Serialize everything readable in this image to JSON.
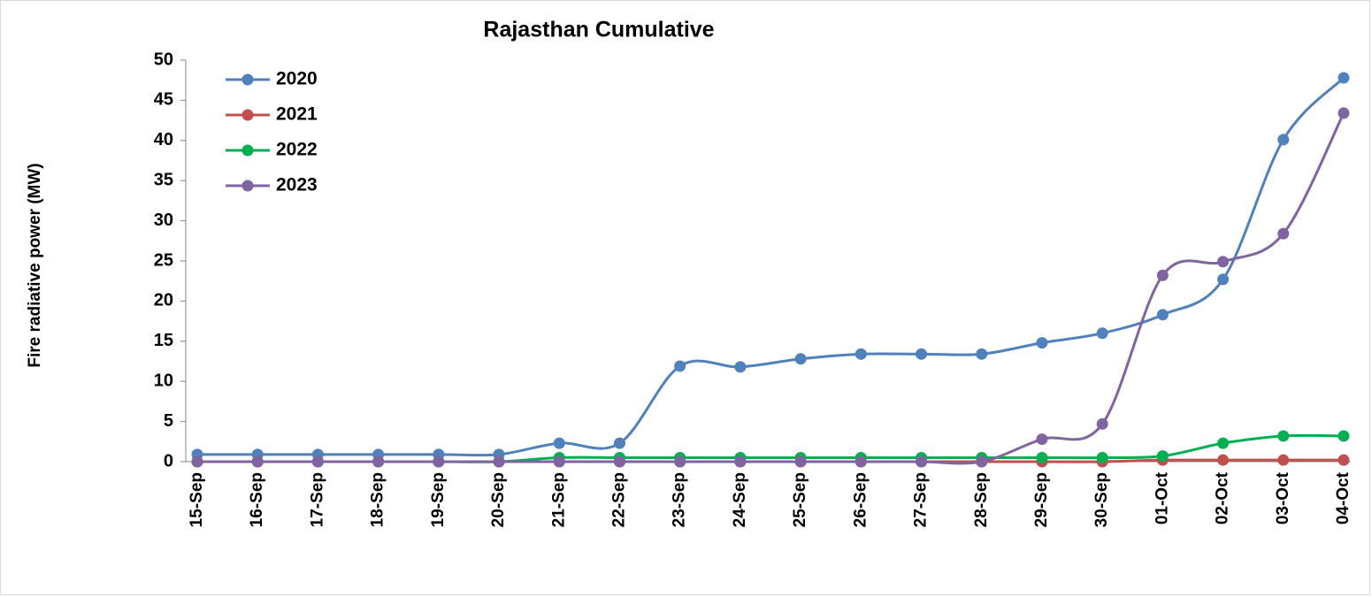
{
  "chart_data": {
    "type": "line",
    "title": "Rajasthan Cumulative",
    "ylabel": "Fire radiative power (MW)",
    "categories": [
      "15-Sep",
      "16-Sep",
      "17-Sep",
      "18-Sep",
      "19-Sep",
      "20-Sep",
      "21-Sep",
      "22-Sep",
      "23-Sep",
      "24-Sep",
      "25-Sep",
      "26-Sep",
      "27-Sep",
      "28-Sep",
      "29-Sep",
      "30-Sep",
      "01-Oct",
      "02-Oct",
      "03-Oct",
      "04-Oct"
    ],
    "series": [
      {
        "name": "2020",
        "color": "#4f81bd",
        "values": [
          0.9,
          0.9,
          0.9,
          0.9,
          0.9,
          0.9,
          2.3,
          2.3,
          11.9,
          11.8,
          12.8,
          13.4,
          13.4,
          13.4,
          14.8,
          16.0,
          18.3,
          22.7,
          40.1,
          47.8
        ]
      },
      {
        "name": "2021",
        "color": "#c0504d",
        "values": [
          0,
          0,
          0,
          0,
          0,
          0,
          0,
          0,
          0,
          0,
          0,
          0,
          0,
          0,
          0,
          0,
          0.2,
          0.2,
          0.2,
          0.2
        ]
      },
      {
        "name": "2022",
        "color": "#00b050",
        "values": [
          0,
          0,
          0,
          0,
          0,
          0,
          0.5,
          0.5,
          0.5,
          0.5,
          0.5,
          0.5,
          0.5,
          0.5,
          0.5,
          0.5,
          0.7,
          2.3,
          3.2,
          3.2
        ]
      },
      {
        "name": "2023",
        "color": "#8064a2",
        "values": [
          0,
          0,
          0,
          0,
          0,
          0,
          0,
          0,
          0,
          0,
          0,
          0,
          0,
          0,
          2.8,
          4.7,
          23.2,
          24.9,
          28.4,
          43.4
        ]
      }
    ],
    "ylim": [
      0,
      50
    ],
    "yticks": [
      0,
      5,
      10,
      15,
      20,
      25,
      30,
      35,
      40,
      45,
      50
    ],
    "grid": false,
    "legend": "upper left",
    "smooth": true
  }
}
